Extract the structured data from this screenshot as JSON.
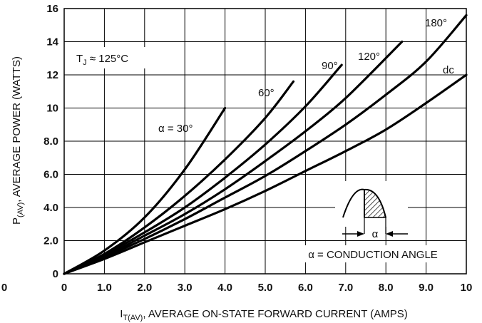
{
  "chart_data": {
    "type": "line",
    "xlabel_main": "I",
    "xlabel_sub": "T(AV)",
    "xlabel_rest": ", AVERAGE ON-STATE FORWARD CURRENT (AMPS)",
    "ylabel_main": "P",
    "ylabel_sub": "(AV)",
    "ylabel_rest": ", AVERAGE POWER (WATTS)",
    "xlim": [
      0,
      10
    ],
    "ylim": [
      0,
      16
    ],
    "grid": true,
    "x_ticks": [
      "0",
      "1.0",
      "2.0",
      "3.0",
      "4.0",
      "5.0",
      "6.0",
      "7.0",
      "8.0",
      "9.0",
      "10"
    ],
    "y_ticks": [
      "0",
      "2.0",
      "4.0",
      "6.0",
      "8.0",
      "10",
      "12",
      "14",
      "16"
    ],
    "left_edge_tick": "0",
    "series": [
      {
        "name": "α = 30°",
        "x": [
          0,
          1,
          2,
          3,
          4
        ],
        "y": [
          0,
          1.4,
          3.4,
          6.3,
          10.0
        ]
      },
      {
        "name": "60°",
        "x": [
          0,
          1,
          2,
          3,
          4,
          5,
          5.7
        ],
        "y": [
          0,
          1.2,
          2.8,
          4.7,
          6.9,
          9.4,
          11.6
        ]
      },
      {
        "name": "90°",
        "x": [
          0,
          1,
          2,
          3,
          4,
          5,
          6,
          6.9
        ],
        "y": [
          0,
          1.15,
          2.5,
          4.0,
          5.8,
          7.8,
          10.1,
          12.6
        ]
      },
      {
        "name": "120°",
        "x": [
          0,
          1,
          2,
          3,
          4,
          5,
          6,
          7,
          8.4
        ],
        "y": [
          0,
          1.05,
          2.3,
          3.6,
          5.1,
          6.8,
          8.6,
          10.6,
          14.0
        ]
      },
      {
        "name": "180°",
        "x": [
          0,
          1,
          2,
          3,
          4,
          5,
          6,
          7,
          8,
          9,
          10
        ],
        "y": [
          0,
          1.0,
          2.1,
          3.3,
          4.6,
          5.9,
          7.4,
          9.0,
          10.8,
          12.8,
          15.6
        ]
      },
      {
        "name": "dc",
        "x": [
          0,
          1,
          2,
          3,
          4,
          5,
          6,
          7,
          8,
          9,
          10
        ],
        "y": [
          0,
          0.9,
          1.9,
          2.9,
          3.9,
          5.0,
          6.2,
          7.4,
          8.7,
          10.3,
          12.0
        ]
      }
    ],
    "annotations": {
      "tj_main": "T",
      "tj_sub": "J",
      "tj_rest": " ≈ 125°C",
      "alpha_symbol": "α",
      "conduction": "α = CONDUCTION ANGLE"
    }
  }
}
